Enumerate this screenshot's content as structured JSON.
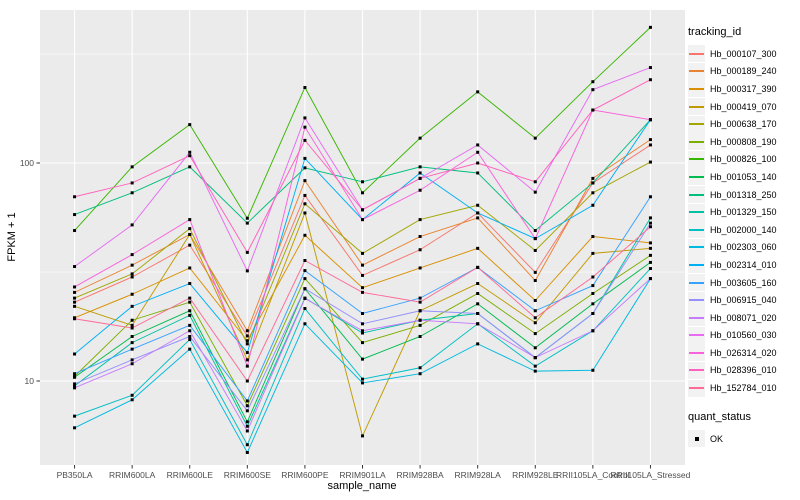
{
  "figure": {
    "bg": "#FFFFFF",
    "panel_bg": "#EBEBEB",
    "grid_color": "#FFFFFF",
    "axis_text_color": "#4D4D4D",
    "tick_color": "#333333",
    "point_color": "#000000",
    "legend_key_bg": "#F2F2F2"
  },
  "chart_data": {
    "type": "line",
    "title": "",
    "xlabel": "sample_name",
    "ylabel": "FPKM + 1",
    "y_scale": "log10",
    "y_ticks": [
      10,
      100
    ],
    "y_minor_breaks": [
      31.6,
      316
    ],
    "ylim": [
      4.5,
      500
    ],
    "grid": true,
    "point_shape": "square",
    "legend_position": "right",
    "legend": {
      "color_title": "tracking_id",
      "shape_title": "quant_status",
      "shape_items": [
        {
          "label": "OK"
        }
      ]
    },
    "categories": [
      "PB350LA",
      "RRIM600LA",
      "RRIM600LE",
      "RRIM600SE",
      "RRIM600PE",
      "RRIM901LA",
      "RRIM928BA",
      "RRIM928LA",
      "RRIM928LE",
      "RRII105LA_Control",
      "RRII105LA_Stressed"
    ],
    "series": [
      {
        "name": "Hb_000107_300",
        "color": "#F8766D",
        "values": [
          23,
          30,
          42,
          16.1,
          71,
          30.5,
          40,
          59,
          31.5,
          81,
          121
        ]
      },
      {
        "name": "Hb_000189_240",
        "color": "#EA8331",
        "values": [
          25.5,
          34,
          47,
          17,
          83,
          34,
          46,
          56,
          28.9,
          85,
          128
        ]
      },
      {
        "name": "Hb_000317_390",
        "color": "#D89000",
        "values": [
          19.5,
          25,
          33,
          15.3,
          46.6,
          26.8,
          33,
          40.6,
          23.4,
          46,
          43
        ]
      },
      {
        "name": "Hb_000419_070",
        "color": "#C09B00",
        "values": [
          22,
          18,
          47,
          12.5,
          59,
          5.6,
          21,
          28,
          18.5,
          38.5,
          40.6
        ]
      },
      {
        "name": "Hb_000638_170",
        "color": "#A3A500",
        "values": [
          24,
          31,
          50,
          14.8,
          65,
          38.5,
          55,
          64,
          39.7,
          73,
          101
        ]
      },
      {
        "name": "Hb_000808_190",
        "color": "#7CAE00",
        "values": [
          10.5,
          19,
          23,
          7.7,
          29.5,
          15,
          18,
          25.2,
          16.5,
          25.2,
          37.7
        ]
      },
      {
        "name": "Hb_000826_100",
        "color": "#39B600",
        "values": [
          49,
          96,
          150,
          55.8,
          222,
          73,
          130,
          212,
          130,
          236,
          419
        ]
      },
      {
        "name": "Hb_001053_140",
        "color": "#00BB4E",
        "values": [
          10.4,
          16,
          21,
          6.5,
          26.5,
          12.6,
          16,
          22.6,
          14.2,
          22.6,
          35
        ]
      },
      {
        "name": "Hb_001318_250",
        "color": "#00BF7D",
        "values": [
          58,
          73,
          96,
          53,
          95,
          82,
          96,
          90,
          49,
          81,
          158
        ]
      },
      {
        "name": "Hb_001329_150",
        "color": "#00C1A3",
        "values": [
          9.5,
          15,
          20,
          6.2,
          24,
          16.6,
          19,
          20.4,
          12.8,
          20.4,
          56
        ]
      },
      {
        "name": "Hb_002000_140",
        "color": "#00BFC4",
        "values": [
          6.9,
          8.6,
          15.5,
          5.1,
          21.5,
          10.2,
          11.5,
          18.3,
          11.7,
          17,
          32.8
        ]
      },
      {
        "name": "Hb_002303_060",
        "color": "#00BAE0",
        "values": [
          6.1,
          8.2,
          14,
          4.7,
          18.3,
          9.8,
          10.8,
          14.8,
          11.1,
          11.2,
          29.5
        ]
      },
      {
        "name": "Hb_002314_010",
        "color": "#00B0F6",
        "values": [
          13.3,
          22,
          28,
          13.5,
          105,
          55,
          90,
          59,
          45,
          64,
          158
        ]
      },
      {
        "name": "Hb_003605_160",
        "color": "#35A2FF",
        "values": [
          10.8,
          14,
          18,
          8.1,
          32.1,
          20.4,
          24,
          33.2,
          21,
          27.4,
          70
        ]
      },
      {
        "name": "Hb_006915_040",
        "color": "#9590FF",
        "values": [
          9.7,
          12.5,
          16,
          7.3,
          26.5,
          18.3,
          21,
          20.4,
          12.8,
          20.4,
          53
        ]
      },
      {
        "name": "Hb_008071_020",
        "color": "#C77CFF",
        "values": [
          9.3,
          12,
          17,
          5.9,
          23.9,
          17,
          19,
          18.3,
          12.8,
          17,
          29.5
        ]
      },
      {
        "name": "Hb_010560_030",
        "color": "#E76BF3",
        "values": [
          33.5,
          52,
          112,
          32,
          161,
          61,
          85,
          121,
          73.5,
          217,
          274
        ]
      },
      {
        "name": "Hb_026314_020",
        "color": "#FA62DB",
        "values": [
          27,
          38,
          55,
          11.7,
          146,
          55,
          75,
          112,
          45,
          175,
          158
        ]
      },
      {
        "name": "Hb_028396_010",
        "color": "#FF62BC",
        "values": [
          70,
          81,
          108,
          38.9,
          127,
          61,
          85,
          100,
          82,
          175,
          241
        ]
      },
      {
        "name": "Hb_152784_010",
        "color": "#FF6A98",
        "values": [
          19.3,
          17.5,
          24,
          10,
          35.7,
          25.5,
          23,
          33.2,
          19.5,
          30,
          51
        ]
      }
    ]
  }
}
